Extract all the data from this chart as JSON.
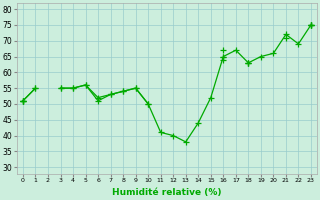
{
  "x": [
    0,
    1,
    2,
    3,
    4,
    5,
    6,
    7,
    8,
    9,
    10,
    11,
    12,
    13,
    14,
    15,
    16,
    17,
    18,
    19,
    20,
    21,
    22,
    23
  ],
  "lines": [
    [
      51,
      55,
      null,
      55,
      55,
      56,
      52,
      53,
      54,
      55,
      50,
      41,
      40,
      38,
      44,
      52,
      65,
      67,
      63,
      65,
      66,
      72,
      69,
      75
    ],
    [
      51,
      55,
      null,
      55,
      55,
      56,
      51,
      53,
      54,
      55,
      50,
      null,
      null,
      null,
      null,
      null,
      64,
      null,
      63,
      null,
      null,
      71,
      null,
      75
    ],
    [
      51,
      null,
      null,
      null,
      null,
      null,
      null,
      null,
      null,
      null,
      null,
      null,
      null,
      null,
      null,
      null,
      67,
      null,
      null,
      null,
      null,
      null,
      null,
      75
    ],
    [
      51,
      null,
      null,
      null,
      null,
      null,
      null,
      null,
      null,
      null,
      null,
      null,
      null,
      null,
      null,
      null,
      65,
      null,
      63,
      null,
      null,
      null,
      null,
      75
    ]
  ],
  "xlabel": "Humidité relative (%)",
  "ylim": [
    28,
    82
  ],
  "xlim": [
    -0.5,
    23.5
  ],
  "yticks": [
    30,
    35,
    40,
    45,
    50,
    55,
    60,
    65,
    70,
    75,
    80
  ],
  "xticks": [
    0,
    1,
    2,
    3,
    4,
    5,
    6,
    7,
    8,
    9,
    10,
    11,
    12,
    13,
    14,
    15,
    16,
    17,
    18,
    19,
    20,
    21,
    22,
    23
  ],
  "line_color": "#00aa00",
  "bg_color": "#cceedd",
  "grid_color": "#99cccc",
  "marker": "+",
  "markersize": 4,
  "linewidth": 0.9
}
